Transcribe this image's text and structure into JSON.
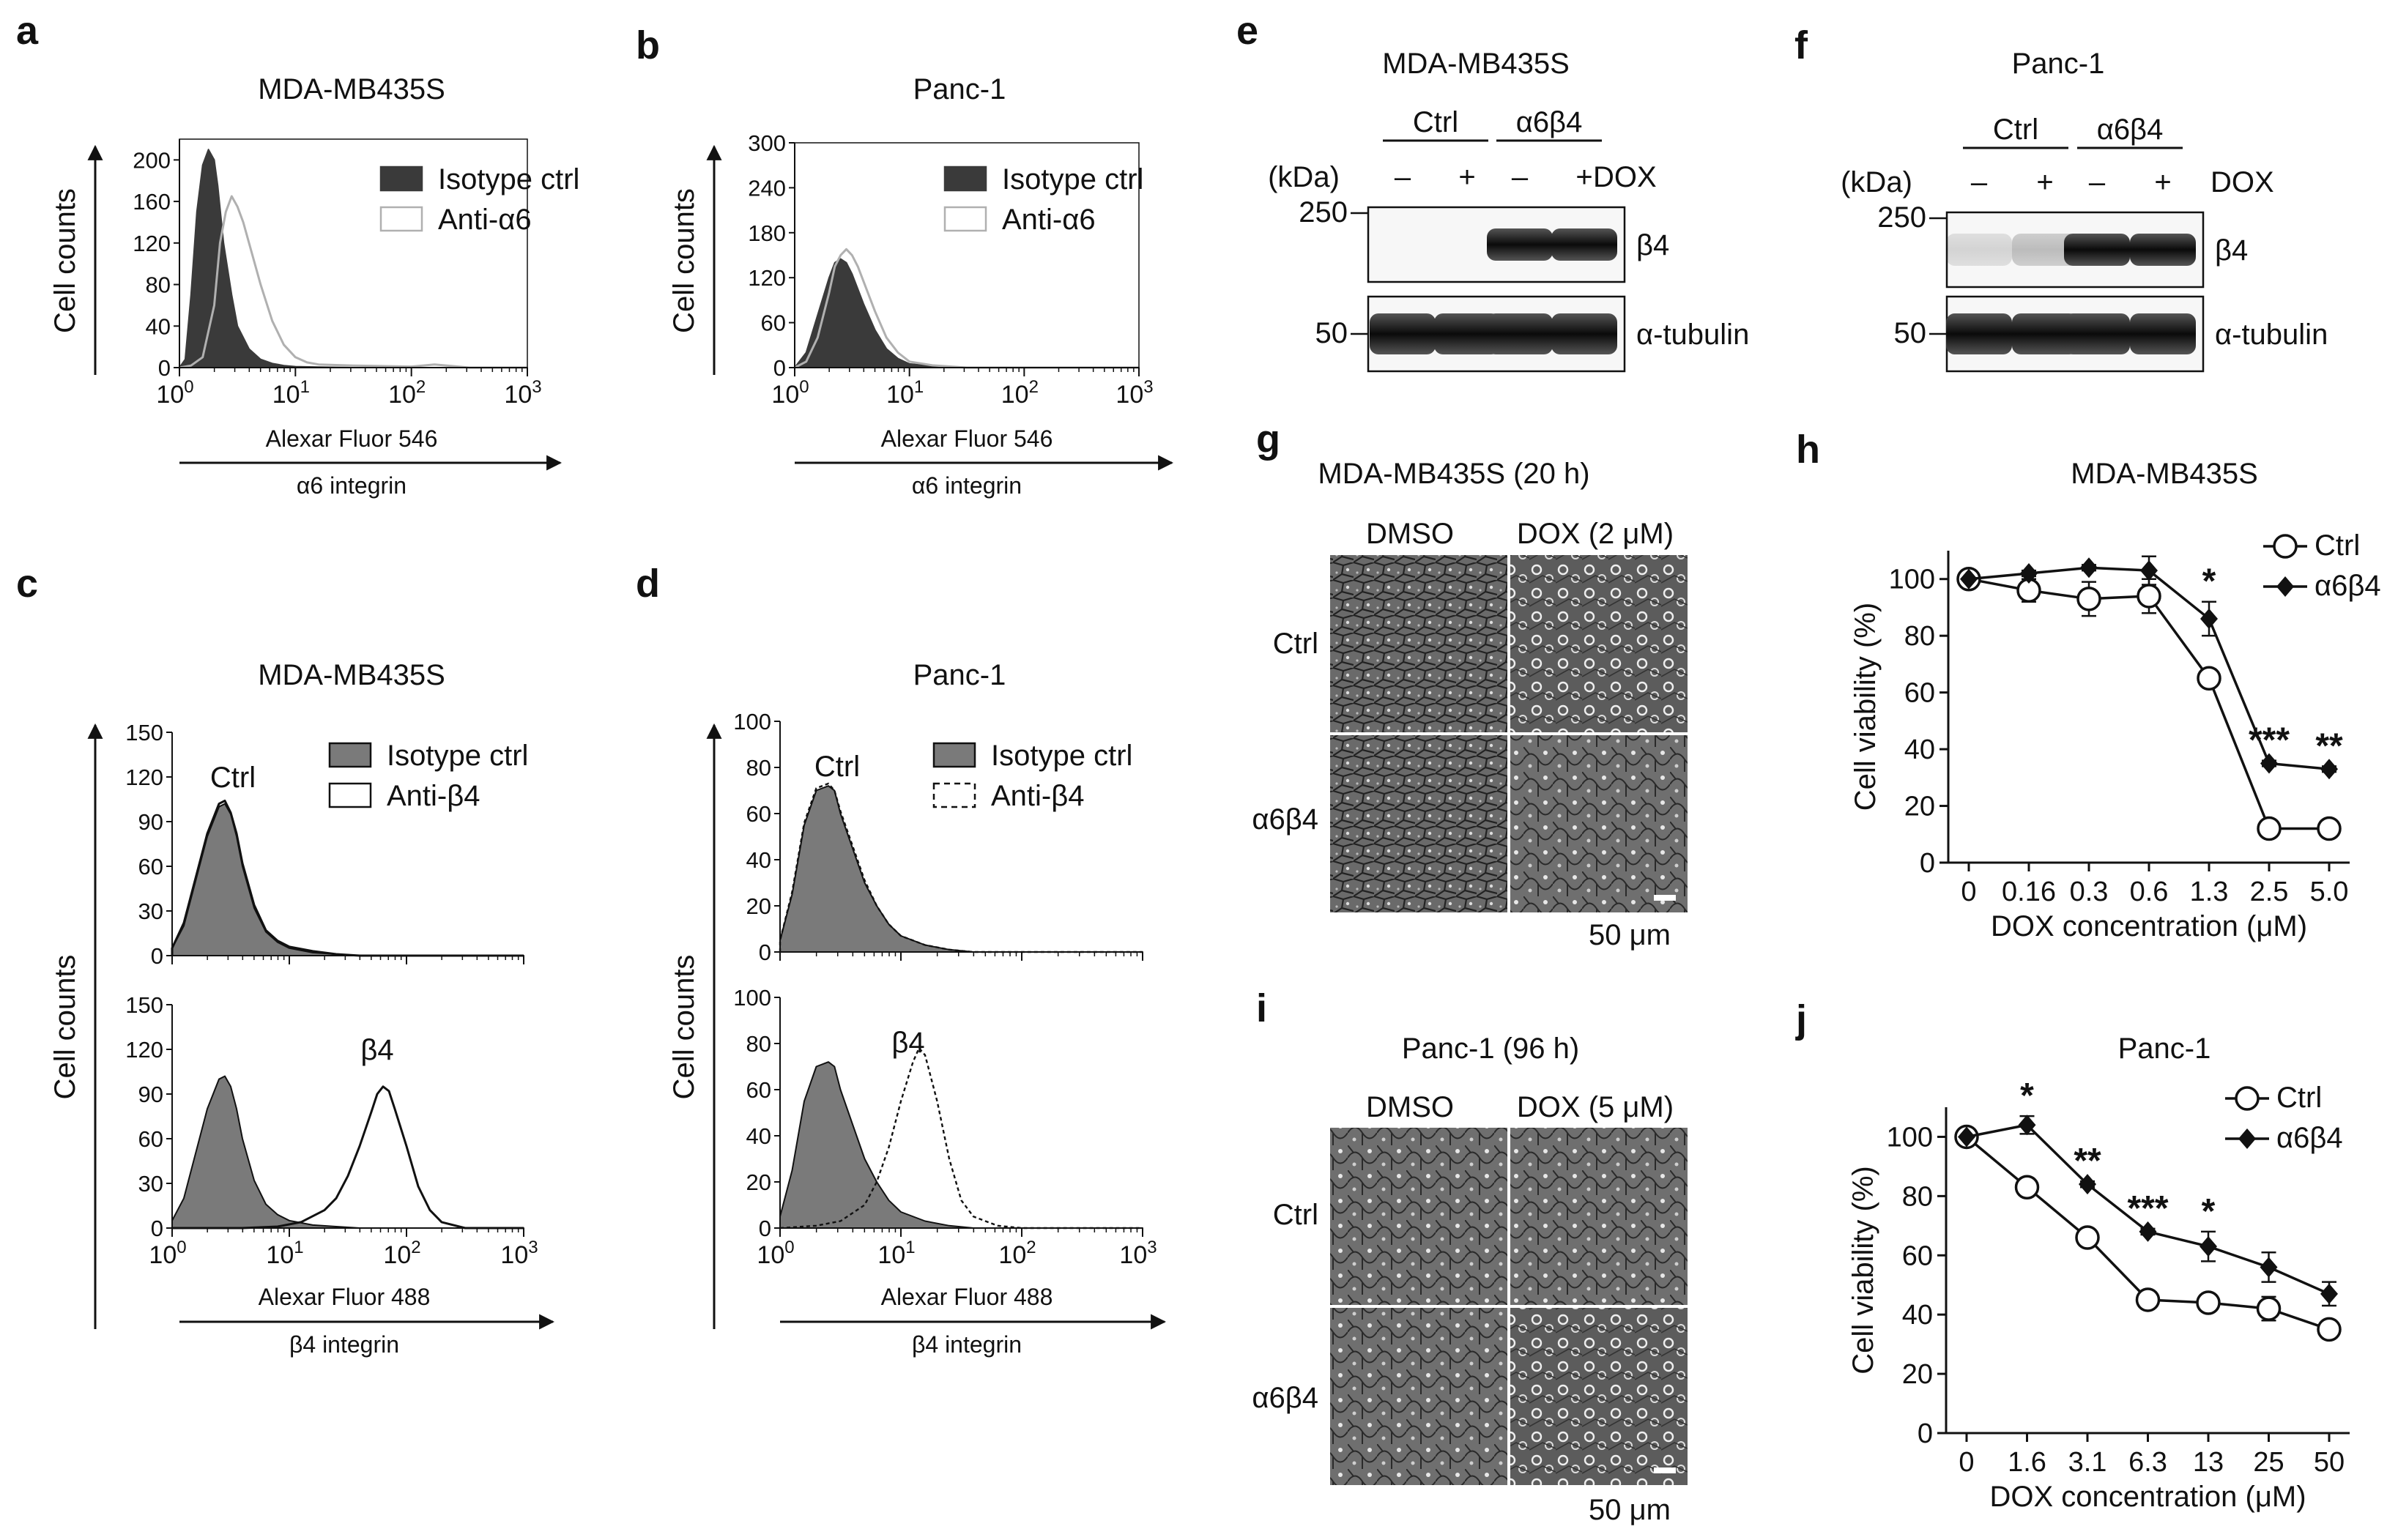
{
  "colors": {
    "ink": "#111111",
    "fill_dark": "#3a3a3a",
    "fill_mid": "#7a7a7a",
    "anti_gray": "#b0b0b0",
    "white": "#ffffff"
  },
  "chart_data": [
    {
      "panel": "a",
      "type": "area",
      "title": "MDA-MB435S",
      "xlabel": "Alexar Fluor 546",
      "xlabel2": "α6 integrin",
      "ylabel": "Cell counts",
      "xscale": "log",
      "xlim": [
        1,
        1000
      ],
      "ylim": [
        0,
        220
      ],
      "xticks": [
        {
          "base": "10",
          "exp": "0"
        },
        {
          "base": "10",
          "exp": "1"
        },
        {
          "base": "10",
          "exp": "2"
        },
        {
          "base": "10",
          "exp": "3"
        }
      ],
      "yticks": [
        "0",
        "40",
        "80",
        "120",
        "160",
        "200"
      ],
      "legend": [
        "Isotype ctrl",
        "Anti-α6"
      ],
      "series": [
        {
          "name": "Isotype ctrl",
          "style": "fill-dark",
          "logx": [
            0,
            0.05,
            0.1,
            0.15,
            0.2,
            0.25,
            0.3,
            0.33,
            0.38,
            0.45,
            0.5,
            0.6,
            0.7,
            0.8,
            0.9,
            1.0,
            1.2,
            1.5,
            2.0,
            2.5,
            3.0
          ],
          "y": [
            0,
            8,
            70,
            150,
            195,
            210,
            200,
            175,
            120,
            70,
            40,
            18,
            8,
            4,
            2,
            1,
            0.5,
            0,
            0,
            0,
            0
          ]
        },
        {
          "name": "Anti-α6",
          "style": "outline-gray",
          "logx": [
            0,
            0.1,
            0.2,
            0.3,
            0.35,
            0.4,
            0.45,
            0.5,
            0.55,
            0.6,
            0.7,
            0.8,
            0.9,
            1.0,
            1.1,
            1.2,
            1.5,
            2.0,
            2.2,
            2.5,
            3.0
          ],
          "y": [
            0,
            2,
            10,
            60,
            120,
            150,
            165,
            155,
            140,
            120,
            80,
            45,
            22,
            10,
            5,
            3,
            2,
            1,
            3,
            0,
            0
          ]
        }
      ]
    },
    {
      "panel": "b",
      "type": "area",
      "title": "Panc-1",
      "xlabel": "Alexar Fluor 546",
      "xlabel2": "α6 integrin",
      "ylabel": "Cell counts",
      "xscale": "log",
      "xlim": [
        1,
        1000
      ],
      "ylim": [
        0,
        300
      ],
      "xticks": [
        {
          "base": "10",
          "exp": "0"
        },
        {
          "base": "10",
          "exp": "1"
        },
        {
          "base": "10",
          "exp": "2"
        },
        {
          "base": "10",
          "exp": "3"
        }
      ],
      "yticks": [
        "0",
        "60",
        "120",
        "180",
        "240",
        "300"
      ],
      "legend": [
        "Isotype ctrl",
        "Anti-α6"
      ],
      "series": [
        {
          "name": "Isotype ctrl",
          "style": "fill-dark",
          "logx": [
            0,
            0.1,
            0.2,
            0.3,
            0.35,
            0.4,
            0.45,
            0.5,
            0.55,
            0.6,
            0.7,
            0.8,
            0.9,
            1.0,
            1.2,
            1.5,
            2.0,
            3.0
          ],
          "y": [
            0,
            20,
            70,
            120,
            140,
            145,
            140,
            125,
            105,
            85,
            50,
            25,
            12,
            5,
            2,
            0,
            0,
            0
          ]
        },
        {
          "name": "Anti-α6",
          "style": "outline-gray",
          "logx": [
            0,
            0.1,
            0.2,
            0.3,
            0.35,
            0.4,
            0.45,
            0.5,
            0.55,
            0.6,
            0.7,
            0.8,
            0.9,
            1.0,
            1.2,
            1.5,
            2.0,
            3.0
          ],
          "y": [
            0,
            8,
            40,
            100,
            135,
            150,
            158,
            150,
            135,
            115,
            75,
            40,
            20,
            8,
            3,
            0,
            0,
            0
          ]
        }
      ]
    },
    {
      "panel": "c",
      "type": "area",
      "title": "MDA-MB435S",
      "xlabel": "Alexar Fluor 488",
      "xlabel2": "β4 integrin",
      "ylabel": "Cell counts",
      "xscale": "log",
      "xlim": [
        1,
        1000
      ],
      "ylim": [
        0,
        150
      ],
      "xticks": [
        {
          "base": "10",
          "exp": "0"
        },
        {
          "base": "10",
          "exp": "1"
        },
        {
          "base": "10",
          "exp": "2"
        },
        {
          "base": "10",
          "exp": "3"
        }
      ],
      "yticks": [
        "0",
        "30",
        "60",
        "90",
        "120",
        "150"
      ],
      "legend": [
        "Isotype ctrl",
        "Anti-β4"
      ],
      "subpanels": [
        {
          "label": "Ctrl",
          "series": [
            {
              "name": "Isotype ctrl",
              "style": "fill-mid",
              "logx": [
                0,
                0.1,
                0.2,
                0.3,
                0.4,
                0.45,
                0.5,
                0.55,
                0.6,
                0.7,
                0.8,
                0.9,
                1.0,
                1.2,
                1.4,
                1.6,
                2.0,
                3.0
              ],
              "y": [
                5,
                20,
                50,
                80,
                100,
                102,
                95,
                80,
                60,
                32,
                16,
                9,
                5,
                2,
                1,
                0,
                0,
                0
              ]
            },
            {
              "name": "Anti-β4",
              "style": "outline-black",
              "logx": [
                0,
                0.1,
                0.2,
                0.3,
                0.4,
                0.45,
                0.5,
                0.55,
                0.6,
                0.7,
                0.8,
                0.9,
                1.0,
                1.2,
                1.4,
                1.6,
                2.0,
                3.0
              ],
              "y": [
                5,
                22,
                52,
                82,
                102,
                104,
                96,
                82,
                62,
                34,
                17,
                10,
                6,
                3,
                1,
                0,
                0,
                0
              ]
            }
          ]
        },
        {
          "label": "β4",
          "series": [
            {
              "name": "Isotype ctrl",
              "style": "fill-mid",
              "logx": [
                0,
                0.1,
                0.2,
                0.3,
                0.4,
                0.45,
                0.5,
                0.55,
                0.6,
                0.7,
                0.8,
                0.9,
                1.0,
                1.2,
                1.4,
                1.6,
                2.0,
                3.0
              ],
              "y": [
                5,
                20,
                50,
                80,
                100,
                102,
                95,
                80,
                60,
                32,
                16,
                9,
                5,
                2,
                1,
                0,
                0,
                0
              ]
            },
            {
              "name": "Anti-β4",
              "style": "outline-black",
              "logx": [
                0,
                0.6,
                0.9,
                1.1,
                1.3,
                1.4,
                1.5,
                1.6,
                1.7,
                1.75,
                1.8,
                1.85,
                1.9,
                2.0,
                2.1,
                2.2,
                2.3,
                2.5,
                3.0
              ],
              "y": [
                0,
                0,
                1,
                4,
                12,
                20,
                35,
                55,
                78,
                90,
                95,
                92,
                80,
                55,
                28,
                12,
                4,
                0,
                0
              ]
            }
          ]
        }
      ]
    },
    {
      "panel": "d",
      "type": "area",
      "title": "Panc-1",
      "xlabel": "Alexar Fluor 488",
      "xlabel2": "β4 integrin",
      "ylabel": "Cell counts",
      "xscale": "log",
      "xlim": [
        1,
        1000
      ],
      "ylim": [
        0,
        100
      ],
      "xticks": [
        {
          "base": "10",
          "exp": "0"
        },
        {
          "base": "10",
          "exp": "1"
        },
        {
          "base": "10",
          "exp": "2"
        },
        {
          "base": "10",
          "exp": "3"
        }
      ],
      "yticks": [
        "0",
        "20",
        "40",
        "60",
        "80",
        "100"
      ],
      "legend": [
        "Isotype ctrl",
        "Anti-β4"
      ],
      "subpanels": [
        {
          "label": "Ctrl",
          "series": [
            {
              "name": "Isotype ctrl",
              "style": "fill-mid",
              "logx": [
                0,
                0.1,
                0.2,
                0.3,
                0.4,
                0.45,
                0.5,
                0.6,
                0.7,
                0.8,
                0.9,
                1.0,
                1.2,
                1.4,
                1.6,
                2.0,
                3.0
              ],
              "y": [
                5,
                25,
                55,
                70,
                72,
                70,
                60,
                45,
                30,
                20,
                12,
                7,
                3,
                1,
                0,
                0,
                0
              ]
            },
            {
              "name": "Anti-β4",
              "style": "dash-black",
              "logx": [
                0,
                0.1,
                0.2,
                0.3,
                0.4,
                0.45,
                0.5,
                0.6,
                0.7,
                0.8,
                0.9,
                1.0,
                1.2,
                1.4,
                1.6,
                2.0,
                3.0
              ],
              "y": [
                5,
                26,
                56,
                71,
                73,
                70,
                61,
                46,
                31,
                20,
                12,
                7,
                3,
                1,
                0,
                0,
                0
              ]
            }
          ]
        },
        {
          "label": "β4",
          "series": [
            {
              "name": "Isotype ctrl",
              "style": "fill-mid",
              "logx": [
                0,
                0.1,
                0.2,
                0.3,
                0.4,
                0.45,
                0.5,
                0.6,
                0.7,
                0.8,
                0.9,
                1.0,
                1.2,
                1.4,
                1.6,
                2.0,
                3.0
              ],
              "y": [
                5,
                25,
                55,
                70,
                72,
                70,
                60,
                45,
                30,
                20,
                12,
                7,
                3,
                1,
                0,
                0,
                0
              ]
            },
            {
              "name": "Anti-β4",
              "style": "dash-black",
              "logx": [
                0,
                0.3,
                0.5,
                0.7,
                0.8,
                0.9,
                1.0,
                1.1,
                1.15,
                1.2,
                1.3,
                1.4,
                1.5,
                1.6,
                1.8,
                2.0,
                3.0
              ],
              "y": [
                0,
                1,
                3,
                10,
                20,
                35,
                55,
                72,
                78,
                75,
                55,
                30,
                12,
                5,
                1,
                0,
                0
              ]
            }
          ]
        }
      ]
    },
    {
      "panel": "h",
      "type": "line",
      "title": "MDA-MB435S",
      "xlabel": "DOX concentration (μM)",
      "ylabel": "Cell viability (%)",
      "categories": [
        "0",
        "0.16",
        "0.3",
        "0.6",
        "1.3",
        "2.5",
        "5.0"
      ],
      "ylim": [
        0,
        100
      ],
      "yticks": [
        "0",
        "20",
        "40",
        "60",
        "80",
        "100"
      ],
      "series": [
        {
          "name": "Ctrl",
          "marker": "open-circle",
          "values": [
            100,
            96,
            93,
            94,
            65,
            12,
            12
          ],
          "errors": [
            0,
            4,
            6,
            6,
            2,
            0,
            0
          ]
        },
        {
          "name": "α6β4",
          "marker": "filled-diamond",
          "values": [
            100,
            102,
            104,
            103,
            86,
            35,
            33
          ],
          "errors": [
            0,
            1,
            1,
            5,
            6,
            1,
            1
          ]
        }
      ],
      "annotations": [
        {
          "category": "1.3",
          "text": "*"
        },
        {
          "category": "2.5",
          "text": "***"
        },
        {
          "category": "5.0",
          "text": "**"
        }
      ]
    },
    {
      "panel": "j",
      "type": "line",
      "title": "Panc-1",
      "xlabel": "DOX concentration (μM)",
      "ylabel": "Cell viability (%)",
      "categories": [
        "0",
        "1.6",
        "3.1",
        "6.3",
        "13",
        "25",
        "50"
      ],
      "ylim": [
        0,
        100
      ],
      "yticks": [
        "0",
        "20",
        "40",
        "60",
        "80",
        "100"
      ],
      "series": [
        {
          "name": "Ctrl",
          "marker": "open-circle",
          "values": [
            100,
            83,
            66,
            45,
            44,
            42,
            35
          ],
          "errors": [
            0,
            1,
            1,
            1,
            1,
            4,
            1
          ]
        },
        {
          "name": "α6β4",
          "marker": "filled-diamond",
          "values": [
            100,
            104,
            84,
            68,
            63,
            56,
            47
          ],
          "errors": [
            0,
            3,
            1,
            1,
            5,
            5,
            4
          ]
        }
      ],
      "annotations": [
        {
          "category": "1.6",
          "text": "*"
        },
        {
          "category": "3.1",
          "text": "**"
        },
        {
          "category": "6.3",
          "text": "***"
        },
        {
          "category": "13",
          "text": "*"
        }
      ]
    }
  ],
  "panel_labels": {
    "a": "a",
    "b": "b",
    "c": "c",
    "d": "d",
    "e": "e",
    "f": "f",
    "g": "g",
    "h": "h",
    "i": "i",
    "j": "j"
  },
  "western": {
    "e": {
      "title": "MDA-MB435S",
      "kda": "(kDa)",
      "dox": "DOX",
      "ctrl": "Ctrl",
      "a6b4": "α6β4",
      "minus": "–",
      "plus": "+",
      "m250": "250",
      "m50": "50",
      "b4": "β4",
      "tub": "α-tubulin",
      "b4_intensity": [
        0,
        0,
        1,
        1
      ],
      "tub_intensity": [
        1,
        1,
        1,
        1
      ]
    },
    "f": {
      "title": "Panc-1",
      "kda": "(kDa)",
      "dox": "DOX",
      "ctrl": "Ctrl",
      "a6b4": "α6β4",
      "minus": "–",
      "plus": "+",
      "m250": "250",
      "m50": "50",
      "b4": "β4",
      "tub": "α-tubulin",
      "b4_intensity": [
        0.15,
        0.25,
        1,
        1
      ],
      "tub_intensity": [
        1,
        1,
        1,
        1
      ]
    }
  },
  "micro": {
    "g": {
      "title": "MDA-MB435S (20 h)",
      "dmso": "DMSO",
      "dox": "DOX (2 μM)",
      "ctrl": "Ctrl",
      "a6b4": "α6β4",
      "scale": "50 μm"
    },
    "i": {
      "title": "Panc-1 (96 h)",
      "dmso": "DMSO",
      "dox": "DOX (5 μM)",
      "ctrl": "Ctrl",
      "a6b4": "α6β4",
      "scale": "50 μm"
    }
  }
}
